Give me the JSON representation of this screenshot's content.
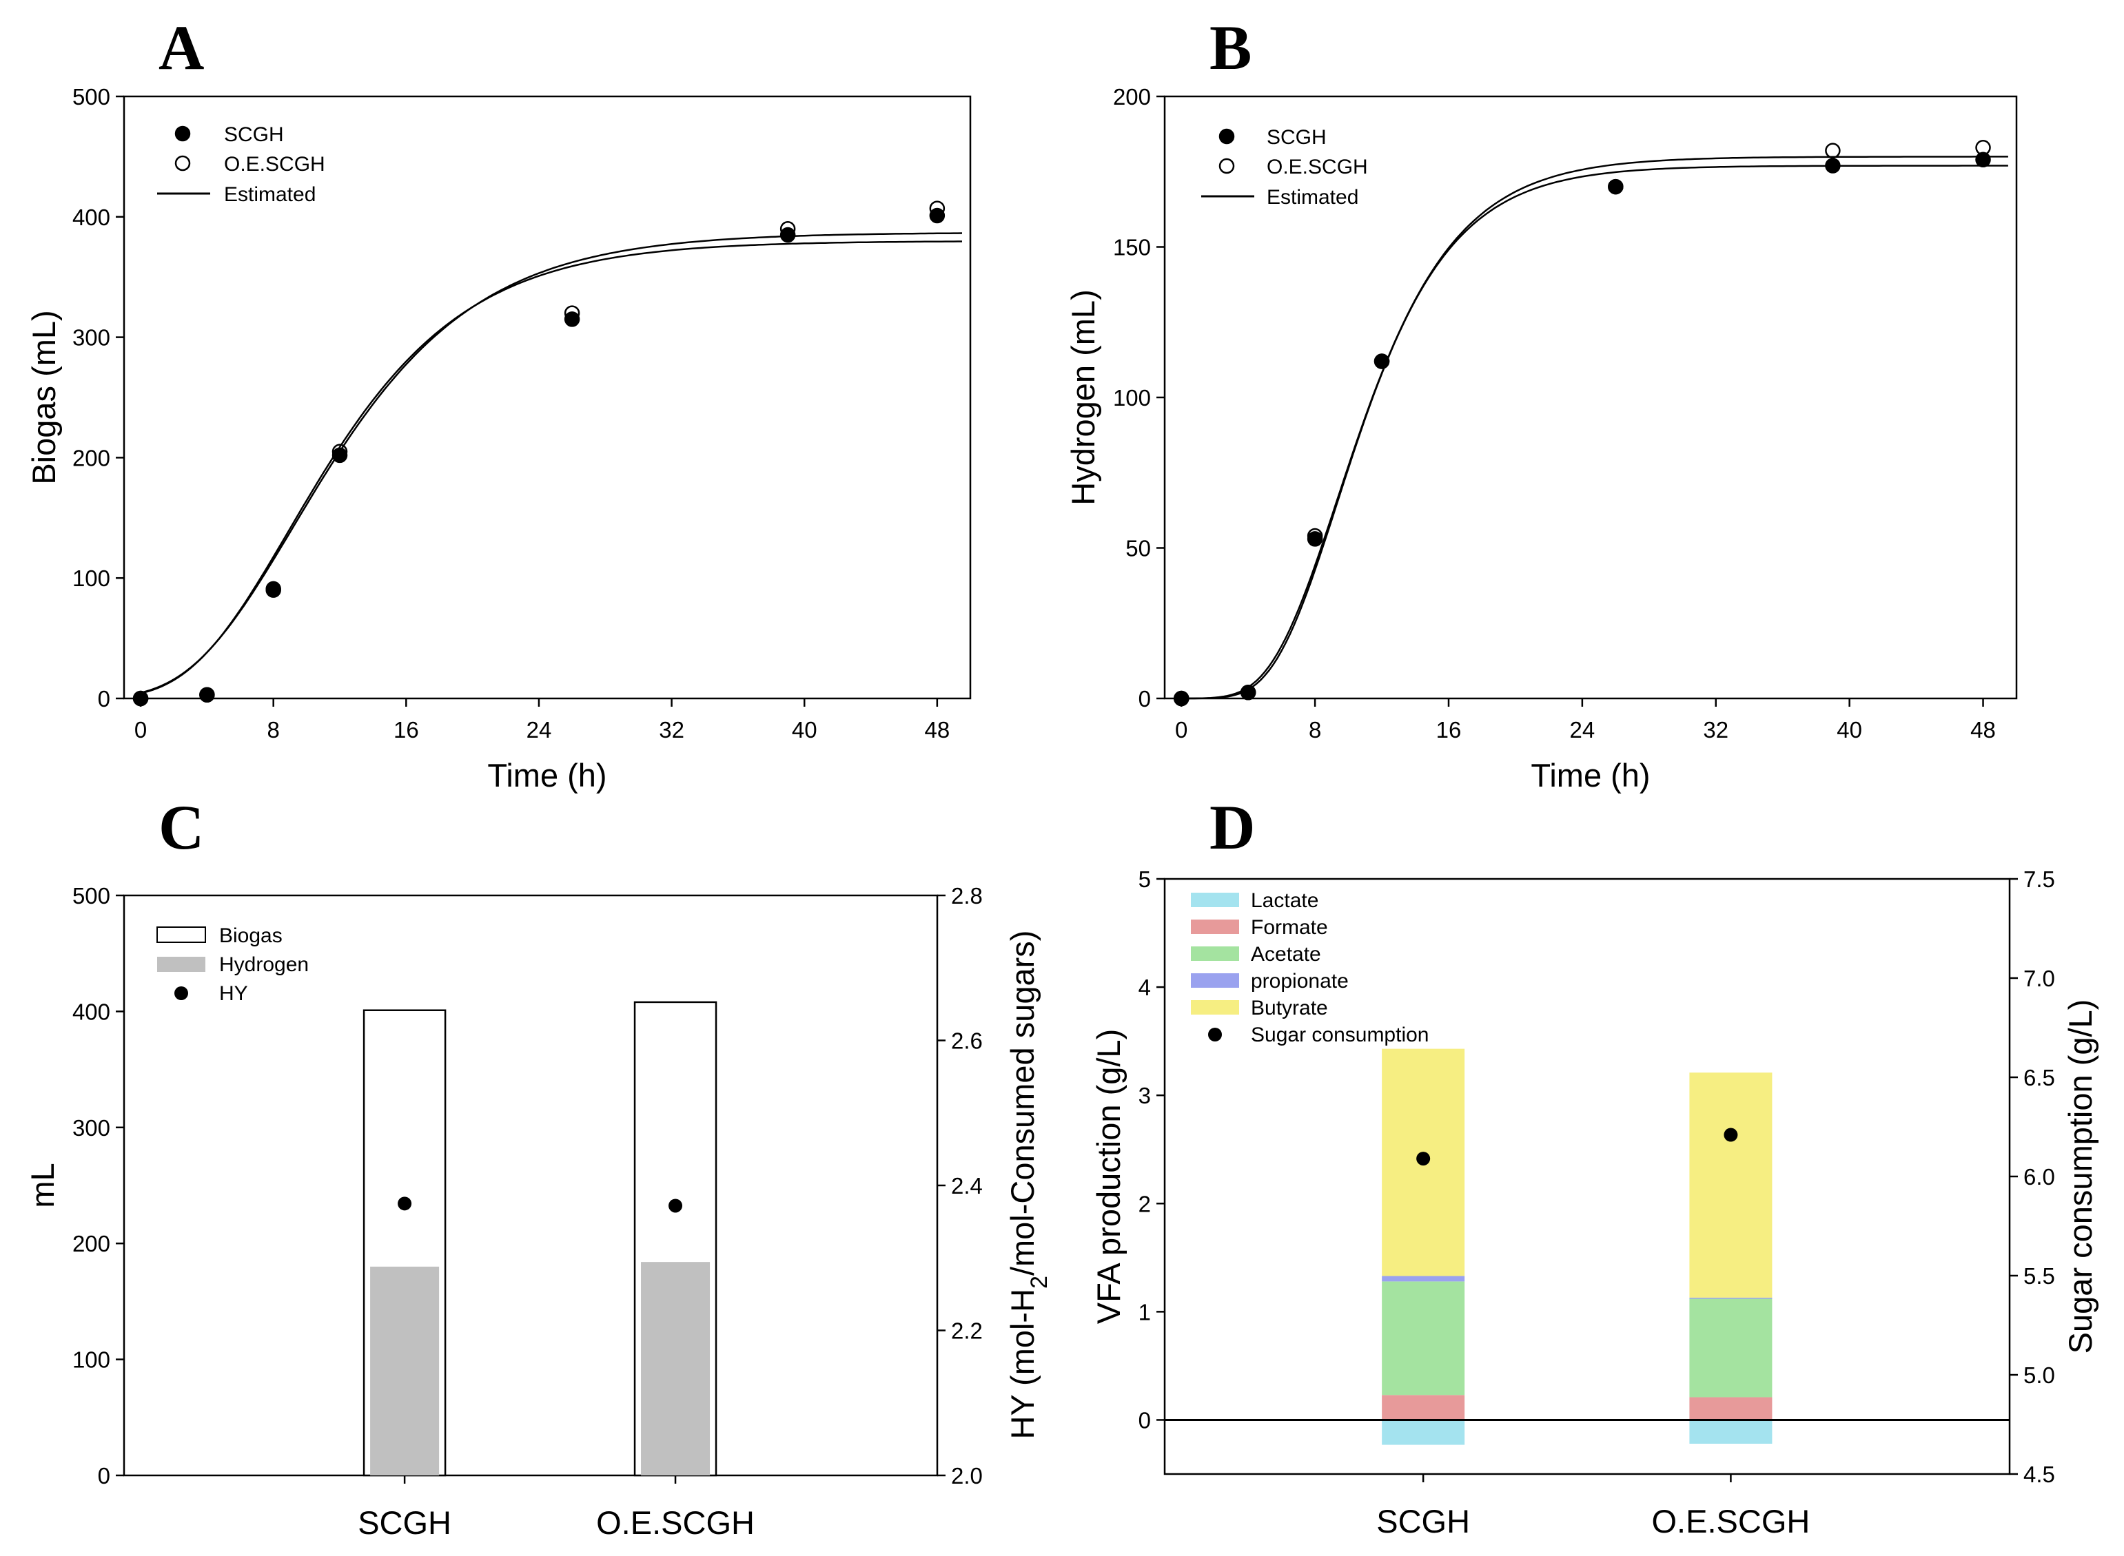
{
  "chart_data": [
    {
      "panel": "A",
      "type": "scatter",
      "xlabel": "Time (h)",
      "ylabel": "Biogas (mL)",
      "xlim": [
        -1,
        50
      ],
      "ylim": [
        0,
        500
      ],
      "xticks": [
        0,
        8,
        16,
        24,
        32,
        40,
        48
      ],
      "yticks": [
        0,
        100,
        200,
        300,
        400,
        500
      ],
      "legend": [
        "SCGH",
        "O.E.SCGH",
        "Estimated"
      ],
      "legend_position": "top-left",
      "series": [
        {
          "name": "SCGH",
          "marker": "filled",
          "x": [
            0,
            4,
            8,
            12,
            26,
            39,
            48
          ],
          "y": [
            0,
            3,
            90,
            202,
            315,
            385,
            401
          ]
        },
        {
          "name": "O.E.SCGH",
          "marker": "open",
          "x": [
            0,
            4,
            8,
            12,
            26,
            39,
            48
          ],
          "y": [
            0,
            3,
            91,
            205,
            320,
            390,
            407
          ]
        }
      ],
      "fits": [
        {
          "name": "Estimated",
          "P": 380,
          "Rm": 23.5,
          "lambda": 3.0
        },
        {
          "name": "Estimated",
          "P": 387,
          "Rm": 23.0,
          "lambda": 3.0
        }
      ]
    },
    {
      "panel": "B",
      "type": "scatter",
      "xlabel": "Time (h)",
      "ylabel": "Hydrogen (mL)",
      "xlim": [
        -1,
        50
      ],
      "ylim": [
        0,
        200
      ],
      "xticks": [
        0,
        8,
        16,
        24,
        32,
        40,
        48
      ],
      "yticks": [
        0,
        50,
        100,
        150,
        200
      ],
      "legend": [
        "SCGH",
        "O.E.SCGH",
        "Estimated"
      ],
      "legend_position": "top-left",
      "series": [
        {
          "name": "SCGH",
          "marker": "filled",
          "x": [
            0,
            4,
            8,
            12,
            26,
            39,
            48
          ],
          "y": [
            0,
            2,
            53,
            112,
            170,
            177,
            179
          ]
        },
        {
          "name": "O.E.SCGH",
          "marker": "open",
          "x": [
            0,
            4,
            8,
            12,
            26,
            39,
            48
          ],
          "y": [
            0,
            2,
            54,
            112,
            170,
            182,
            183
          ]
        }
      ],
      "fits": [
        {
          "name": "Estimated",
          "P": 177,
          "Rm": 17.2,
          "lambda": 5.55
        },
        {
          "name": "Estimated",
          "P": 180,
          "Rm": 16.8,
          "lambda": 5.4
        }
      ]
    },
    {
      "panel": "C",
      "type": "bar",
      "categories": [
        "SCGH",
        "O.E.SCGH"
      ],
      "ylabel": "mL",
      "y2label": "HY (mol-H",
      "y2label_sub": "2",
      "y2label_end": "/mol-Consumed sugars)",
      "ylim": [
        0,
        500
      ],
      "y2lim": [
        2.0,
        2.8
      ],
      "yticks": [
        0,
        100,
        200,
        300,
        400,
        500
      ],
      "y2ticks": [
        "2.0",
        "2.2",
        "2.4",
        "2.6",
        "2.8"
      ],
      "legend": [
        "Biogas",
        "Hydrogen",
        "HY"
      ],
      "legend_position": "top-left",
      "series": [
        {
          "name": "Biogas",
          "values": [
            401,
            408
          ]
        },
        {
          "name": "Hydrogen",
          "values": [
            180,
            184
          ]
        },
        {
          "name": "HY",
          "axis": "right",
          "values": [
            2.375,
            2.372
          ]
        }
      ]
    },
    {
      "panel": "D",
      "type": "bar",
      "stacked": true,
      "categories": [
        "SCGH",
        "O.E.SCGH"
      ],
      "ylabel": "VFA production (g/L)",
      "y2label": "Sugar consumption (g/L)",
      "ylim": [
        -0.5,
        5
      ],
      "y2lim": [
        4.5,
        7.5
      ],
      "yticks": [
        0,
        1,
        2,
        3,
        4,
        5
      ],
      "y2ticks": [
        "4.5",
        "5.0",
        "5.5",
        "6.0",
        "6.5",
        "7.0",
        "7.5"
      ],
      "legend": [
        "Lactate",
        "Formate",
        "Acetate",
        "propionate",
        "Butyrate",
        "Sugar consumption"
      ],
      "legend_position": "top-left",
      "series": [
        {
          "name": "Lactate",
          "color": "#a4e3ef",
          "values": [
            -0.23,
            -0.22
          ]
        },
        {
          "name": "Formate",
          "color": "#e79a9a",
          "values": [
            0.23,
            0.21
          ]
        },
        {
          "name": "Acetate",
          "color": "#a4e3a0",
          "values": [
            1.05,
            0.91
          ]
        },
        {
          "name": "propionate",
          "color": "#9aa2ef",
          "values": [
            0.05,
            0.01
          ]
        },
        {
          "name": "Butyrate",
          "color": "#f6ee82",
          "values": [
            2.1,
            2.08
          ]
        },
        {
          "name": "Sugar consumption",
          "axis": "right",
          "values": [
            6.09,
            6.21
          ]
        }
      ]
    }
  ]
}
